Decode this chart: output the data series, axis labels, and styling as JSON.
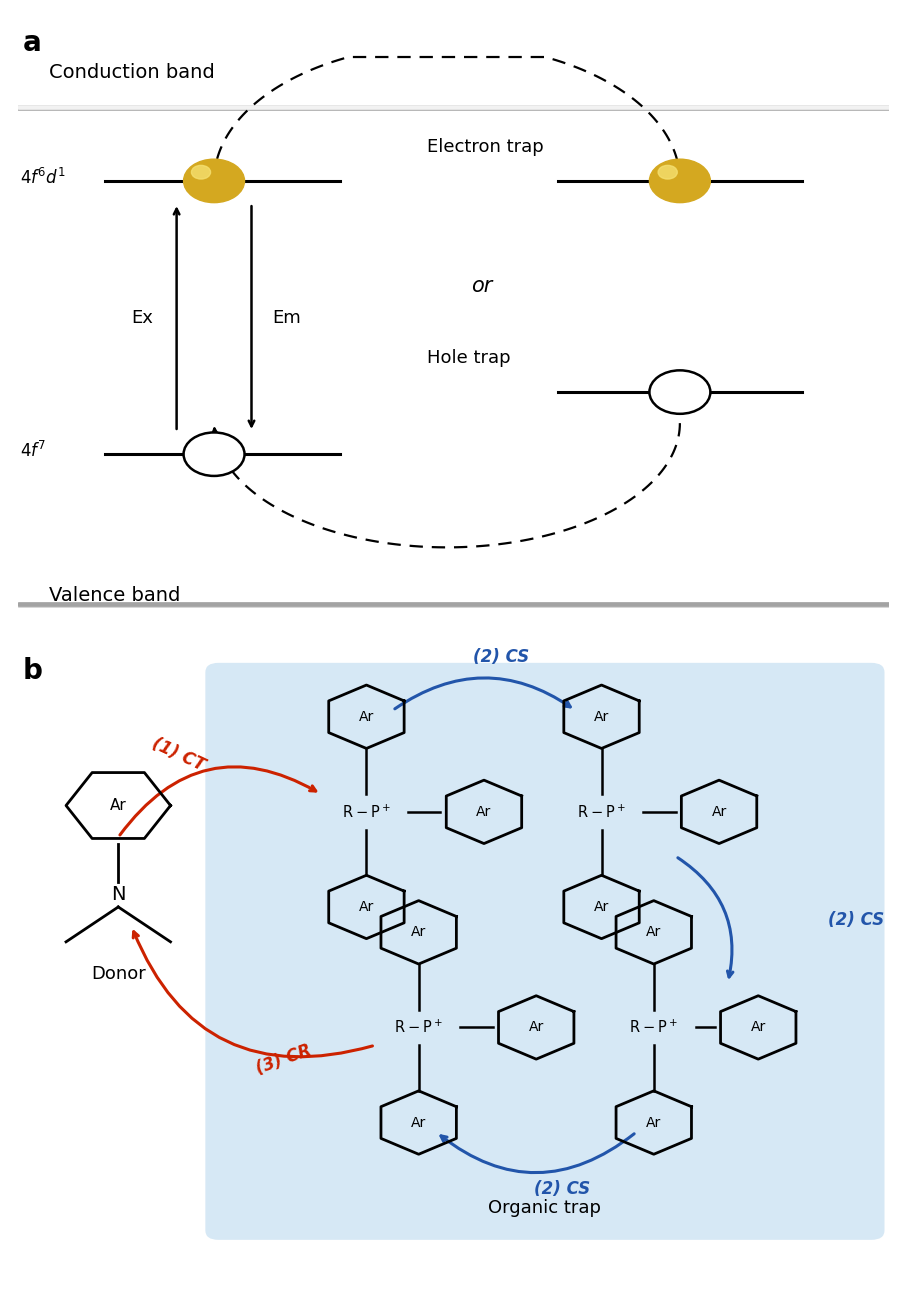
{
  "panel_a": {
    "label": "a",
    "conduction_band_label": "Conduction band",
    "valence_band_label": "Valence band",
    "ex_label": "Ex",
    "em_label": "Em",
    "or_label": "or",
    "electron_trap_label": "Electron trap",
    "hole_trap_label": "Hole trap",
    "gold_color": "#D4A820",
    "gold_highlight": "#F5E070"
  },
  "panel_b": {
    "label": "b",
    "bg_color": "#D6E8F5",
    "donor_label": "Donor",
    "organic_trap_label": "Organic trap",
    "ct_label": "(1) CT",
    "cr_label": "(3) CR",
    "cs_label": "(2) CS",
    "ar_label": "Ar",
    "red_color": "#CC2200",
    "blue_color": "#2255AA"
  }
}
